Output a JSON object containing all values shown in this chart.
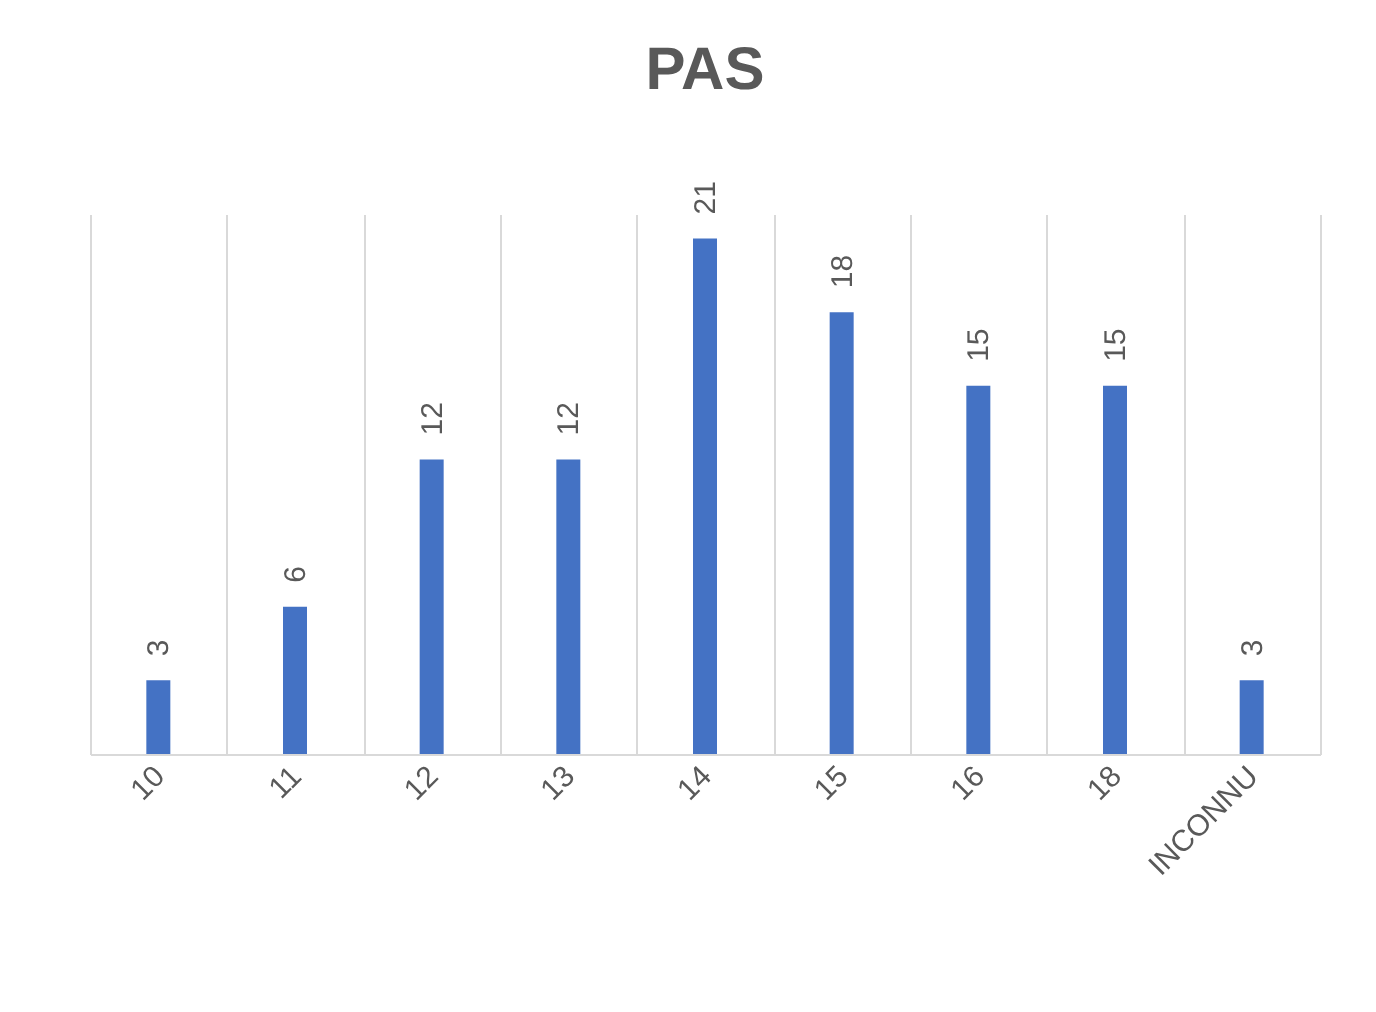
{
  "chart_data": {
    "type": "bar",
    "title": "PAS",
    "categories": [
      "10",
      "11",
      "12",
      "13",
      "14",
      "15",
      "16",
      "18",
      "INCONNU"
    ],
    "values": [
      3,
      6,
      12,
      12,
      21,
      18,
      15,
      15,
      3
    ],
    "color": "#4472c4",
    "data_labels": true,
    "grid": "x"
  }
}
